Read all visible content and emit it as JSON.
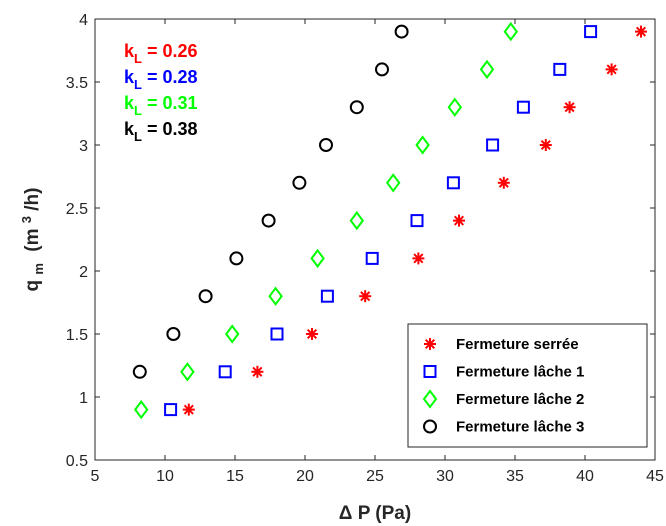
{
  "chart_data": {
    "type": "scatter",
    "xlabel_main": "P (Pa)",
    "xlabel_prefix": "Δ",
    "ylabel_main": "q",
    "ylabel_sub": "m",
    "ylabel_unit_open": "(m",
    "ylabel_unit_sup": "3",
    "ylabel_unit_close": "/h)",
    "xlim": [
      5,
      45
    ],
    "ylim": [
      0.5,
      4
    ],
    "xticks": [
      5,
      10,
      15,
      20,
      25,
      30,
      35,
      40,
      45
    ],
    "yticks": [
      0.5,
      1,
      1.5,
      2,
      2.5,
      3,
      3.5,
      4
    ],
    "grid": false,
    "legend_position": "bottom-right",
    "series": [
      {
        "name": "Fermeture serrée",
        "marker": "asterisk",
        "color": "#ff0000",
        "k_label": "0.26",
        "x": [
          11.7,
          16.6,
          20.5,
          24.3,
          28.1,
          31.0,
          34.2,
          37.2,
          38.9,
          41.9,
          44.0
        ],
        "y": [
          0.9,
          1.2,
          1.5,
          1.8,
          2.1,
          2.4,
          2.7,
          3.0,
          3.3,
          3.6,
          3.9
        ]
      },
      {
        "name": "Fermeture lâche 1",
        "marker": "square",
        "color": "#0000ff",
        "k_label": "0.28",
        "x": [
          10.4,
          14.3,
          18.0,
          21.6,
          24.8,
          28.0,
          30.6,
          33.4,
          35.6,
          38.2,
          40.4
        ],
        "y": [
          0.9,
          1.2,
          1.5,
          1.8,
          2.1,
          2.4,
          2.7,
          3.0,
          3.3,
          3.6,
          3.9
        ]
      },
      {
        "name": "Fermeture lâche 2",
        "marker": "diamond",
        "color": "#00ff00",
        "k_label": "0.31",
        "x": [
          8.3,
          11.6,
          14.8,
          17.9,
          20.9,
          23.7,
          26.3,
          28.4,
          30.7,
          33.0,
          34.7
        ],
        "y": [
          0.9,
          1.2,
          1.5,
          1.8,
          2.1,
          2.4,
          2.7,
          3.0,
          3.3,
          3.6,
          3.9
        ]
      },
      {
        "name": "Fermeture lâche 3",
        "marker": "circle",
        "color": "#000000",
        "k_label": "0.38",
        "x": [
          8.2,
          10.6,
          12.9,
          15.1,
          17.4,
          19.6,
          21.5,
          23.7,
          25.5,
          26.9
        ],
        "y": [
          1.2,
          1.5,
          1.8,
          2.1,
          2.4,
          2.7,
          3.0,
          3.3,
          3.6,
          3.9
        ]
      }
    ],
    "annotation_prefix": "k",
    "annotation_sub": "L",
    "annotation_eq": " = "
  }
}
